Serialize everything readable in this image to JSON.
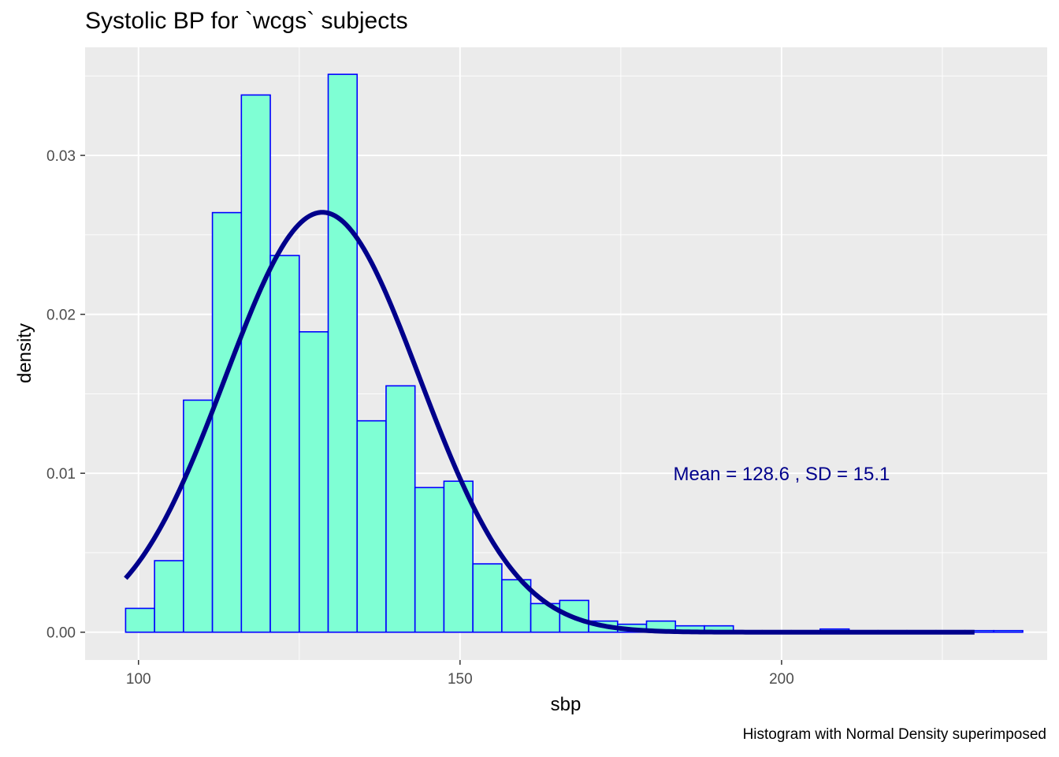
{
  "title": "Systolic BP for `wcgs` subjects",
  "caption": "Histogram with Normal Density superimposed",
  "colors": {
    "panel": "#EBEBEB",
    "grid": "#FFFFFF",
    "bar_fill": "#7FFFD4",
    "bar_stroke": "#0000FF",
    "curve": "#00008B",
    "annotation": "#00008B",
    "tick_text": "#4D4D4D"
  },
  "chart_data": {
    "type": "bar",
    "title": "Systolic BP for `wcgs` subjects",
    "xlabel": "sbp",
    "ylabel": "density",
    "xlim": [
      91.7,
      241.3
    ],
    "ylim": [
      -0.00175,
      0.0368
    ],
    "x_ticks": [
      100,
      150,
      200
    ],
    "x_tick_labels": [
      "100",
      "150",
      "200"
    ],
    "y_ticks": [
      0.0,
      0.01,
      0.02,
      0.03
    ],
    "y_tick_labels": [
      "0.00",
      "0.01",
      "0.02",
      "0.03"
    ],
    "grid": true,
    "legend": "none",
    "histogram": {
      "bin_starts": [
        98,
        102.5,
        107,
        111.5,
        116,
        120.5,
        125,
        129.5,
        134,
        138.5,
        143,
        147.5,
        152,
        156.5,
        161,
        165.5,
        170,
        174.5,
        179,
        183.5,
        188,
        192.5,
        197,
        201.5,
        206,
        210.5,
        215,
        219.5,
        224,
        228.5,
        233
      ],
      "bin_width": 4.5,
      "density": [
        0.0015,
        0.0045,
        0.0146,
        0.0264,
        0.0338,
        0.0237,
        0.0189,
        0.0351,
        0.0133,
        0.0155,
        0.0091,
        0.0095,
        0.0043,
        0.0033,
        0.0018,
        0.002,
        0.0007,
        0.0005,
        0.0007,
        0.0004,
        0.0004,
        0.0001,
        0.0001,
        0.0001,
        0.0002,
        0.0001,
        0.0001,
        0.0001,
        0.0001,
        0.0001,
        0.0001
      ]
    },
    "normal_curve": {
      "mean": 128.6,
      "sd": 15.1,
      "x_from": 98,
      "x_to": 230
    },
    "annotation": {
      "text": "Mean =  128.6 , SD =  15.1",
      "x": 200,
      "y": 0.00995
    }
  }
}
